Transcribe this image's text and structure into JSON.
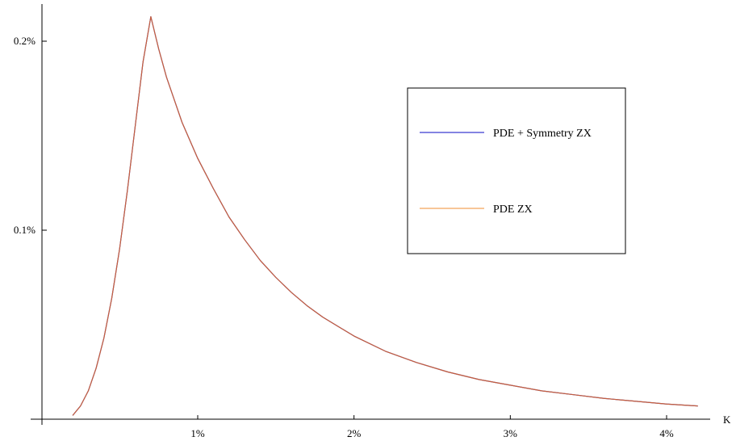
{
  "chart_data": {
    "type": "line",
    "xlabel": "K",
    "ylabel": "",
    "title": "",
    "xlim": [
      0.0,
      0.0432
    ],
    "ylim": [
      0.0,
      0.00215
    ],
    "x_ticks": [
      0.01,
      0.02,
      0.03,
      0.04
    ],
    "x_tick_labels": [
      "1%",
      "2%",
      "3%",
      "4%"
    ],
    "y_ticks": [
      0.001,
      0.002
    ],
    "y_tick_labels": [
      "0.1%",
      "0.2%"
    ],
    "grid": false,
    "legend_position": "right",
    "series": [
      {
        "name": "PDE + Symmetry ZX",
        "color": "#3b3bd1",
        "x": [
          0.002,
          0.0025,
          0.003,
          0.0035,
          0.004,
          0.0045,
          0.005,
          0.0055,
          0.006,
          0.0065,
          0.007,
          0.0075,
          0.008,
          0.009,
          0.01,
          0.011,
          0.012,
          0.013,
          0.014,
          0.015,
          0.016,
          0.017,
          0.018,
          0.019,
          0.02,
          0.022,
          0.024,
          0.026,
          0.028,
          0.03,
          0.032,
          0.034,
          0.036,
          0.038,
          0.04,
          0.042
        ],
        "y": [
          2e-05,
          7e-05,
          0.00015,
          0.00027,
          0.00043,
          0.00064,
          0.0009,
          0.00121,
          0.00155,
          0.00189,
          0.00213,
          0.00196,
          0.00181,
          0.00157,
          0.00138,
          0.00122,
          0.00107,
          0.00095,
          0.00084,
          0.00075,
          0.00067,
          0.0006,
          0.00054,
          0.00049,
          0.00044,
          0.00036,
          0.0003,
          0.00025,
          0.00021,
          0.00018,
          0.00015,
          0.00013,
          0.00011,
          9.5e-05,
          8e-05,
          7e-05
        ]
      },
      {
        "name": "PDE ZX",
        "color": "#f4a35a",
        "x": [
          0.002,
          0.0025,
          0.003,
          0.0035,
          0.004,
          0.0045,
          0.005,
          0.0055,
          0.006,
          0.0065,
          0.007,
          0.0075,
          0.008,
          0.009,
          0.01,
          0.011,
          0.012,
          0.013,
          0.014,
          0.015,
          0.016,
          0.017,
          0.018,
          0.019,
          0.02,
          0.022,
          0.024,
          0.026,
          0.028,
          0.03,
          0.032,
          0.034,
          0.036,
          0.038,
          0.04,
          0.042
        ],
        "y": [
          2e-05,
          7e-05,
          0.00015,
          0.00027,
          0.00043,
          0.00064,
          0.0009,
          0.00121,
          0.00155,
          0.00189,
          0.00213,
          0.00196,
          0.00181,
          0.00157,
          0.00138,
          0.00122,
          0.00107,
          0.00095,
          0.00084,
          0.00075,
          0.00067,
          0.0006,
          0.00054,
          0.00049,
          0.00044,
          0.00036,
          0.0003,
          0.00025,
          0.00021,
          0.00018,
          0.00015,
          0.00013,
          0.00011,
          9.5e-05,
          8e-05,
          7e-05
        ]
      }
    ],
    "overlap_color": "#c8603a"
  }
}
